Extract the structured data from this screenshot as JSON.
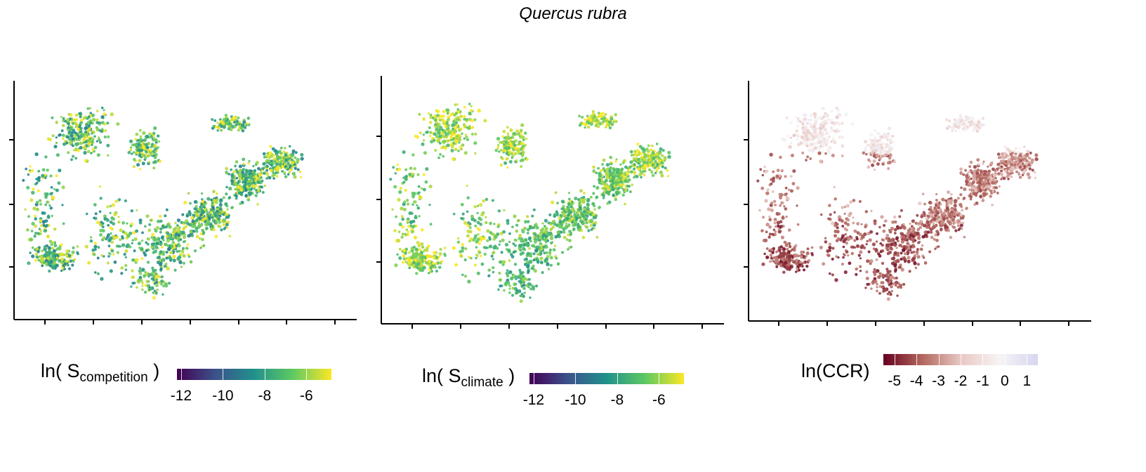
{
  "title": "Quercus rubra",
  "chart_data": [
    {
      "type": "scatter",
      "panel": "left",
      "legend": {
        "title_main": "ln( S",
        "title_sub": "competition",
        "title_end": " )",
        "colormap": "viridis",
        "ticks": [
          -12,
          -10,
          -8,
          -6
        ],
        "tick_labels": [
          "-12",
          "-10",
          "-8",
          "-6"
        ],
        "range": [
          -12.2,
          -4.8
        ]
      },
      "point_value_center": -7.5,
      "axis_tick_labels_shown": false
    },
    {
      "type": "scatter",
      "panel": "middle",
      "legend": {
        "title_main": "ln( S",
        "title_sub": "climate",
        "title_end": " )",
        "colormap": "viridis",
        "ticks": [
          -12,
          -10,
          -8,
          -6
        ],
        "tick_labels": [
          "-12",
          "-10",
          "-8",
          "-6"
        ],
        "range": [
          -12.2,
          -4.8
        ]
      },
      "point_value_center": -6.5,
      "axis_tick_labels_shown": false
    },
    {
      "type": "scatter",
      "panel": "right",
      "legend": {
        "title_main": "ln(CCR)",
        "title_sub": "",
        "title_end": "",
        "colormap": "red-white-blue",
        "ticks": [
          -5,
          -4,
          -3,
          -2,
          -1,
          0,
          1
        ],
        "tick_labels": [
          "-5",
          "-4",
          "-3",
          "-2",
          "-1",
          "0",
          "1"
        ],
        "range": [
          -5.5,
          1.5
        ]
      },
      "point_value_center": -2.5,
      "axis_tick_labels_shown": false
    }
  ],
  "colors": {
    "viridis": [
      "#440154",
      "#3b528b",
      "#21918c",
      "#5ec962",
      "#fde725"
    ],
    "red-white-blue": [
      "#67001f",
      "#b2675e",
      "#e8c8c4",
      "#f7f4f4",
      "#d6d6f0"
    ]
  }
}
